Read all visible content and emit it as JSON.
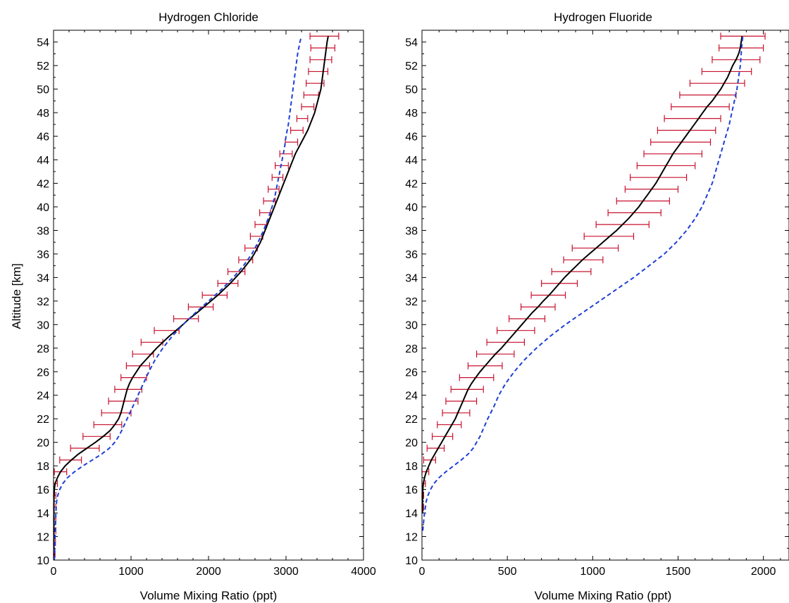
{
  "chart_data": [
    {
      "type": "line",
      "title": "Hydrogen Chloride",
      "xlabel": "Volume Mixing Ratio (ppt)",
      "ylabel": "Altitude [km]",
      "xlim": [
        0,
        4000
      ],
      "ylim": [
        10,
        55
      ],
      "xticks": [
        0,
        1000,
        2000,
        3000,
        4000
      ],
      "yticks": [
        10,
        12,
        14,
        16,
        18,
        20,
        22,
        24,
        26,
        28,
        30,
        32,
        34,
        36,
        38,
        40,
        42,
        44,
        46,
        48,
        50,
        52,
        54
      ],
      "grid": false,
      "series": [
        {
          "style": "solid",
          "color": "#000000",
          "altitude": [
            10,
            11,
            12,
            13,
            14,
            15,
            16,
            16.5,
            17,
            17.5,
            18,
            18.5,
            19,
            19.5,
            20,
            20.5,
            21,
            21.5,
            22,
            22.5,
            23,
            23.5,
            24,
            24.5,
            25,
            25.5,
            26,
            26.5,
            27,
            27.5,
            28,
            28.5,
            29,
            29.5,
            30,
            30.5,
            31,
            31.5,
            32,
            32.5,
            33,
            33.5,
            34,
            34.5,
            35,
            35.5,
            36,
            36.5,
            37,
            37.5,
            38,
            38.5,
            39,
            39.5,
            40,
            40.5,
            41,
            41.5,
            42,
            42.5,
            43,
            43.5,
            44,
            44.5,
            45,
            45.5,
            46,
            46.5,
            47,
            47.5,
            48,
            48.5,
            49,
            49.5,
            50,
            50.5,
            51,
            51.5,
            52,
            52.5,
            53,
            53.5,
            54,
            54.5
          ],
          "vmr": [
            5,
            5,
            5,
            5,
            5,
            5,
            10,
            20,
            50,
            90,
            150,
            230,
            320,
            430,
            540,
            640,
            730,
            790,
            840,
            870,
            890,
            910,
            930,
            950,
            980,
            1020,
            1070,
            1120,
            1190,
            1260,
            1330,
            1410,
            1490,
            1580,
            1670,
            1750,
            1850,
            1940,
            2030,
            2120,
            2200,
            2280,
            2350,
            2420,
            2480,
            2540,
            2590,
            2630,
            2670,
            2700,
            2730,
            2760,
            2790,
            2820,
            2850,
            2880,
            2910,
            2940,
            2970,
            3000,
            3030,
            3060,
            3090,
            3120,
            3160,
            3200,
            3240,
            3280,
            3310,
            3340,
            3370,
            3390,
            3410,
            3430,
            3450,
            3460,
            3470,
            3480,
            3490,
            3500,
            3510,
            3520,
            3530,
            3545
          ]
        },
        {
          "style": "dashed",
          "color": "#1f3fd6",
          "altitude": [
            10,
            11,
            12,
            13,
            14,
            15,
            15.5,
            16,
            16.5,
            17,
            17.5,
            18,
            18.5,
            19,
            19.5,
            20,
            20.5,
            21,
            22,
            23,
            24,
            25,
            26,
            27,
            28,
            29,
            30,
            31,
            32,
            33,
            34,
            35,
            36,
            37,
            38,
            39,
            40,
            41,
            42,
            43,
            44,
            45,
            46,
            47,
            48,
            49,
            50,
            51,
            52,
            53,
            54,
            54.5
          ],
          "vmr": [
            10,
            15,
            20,
            25,
            30,
            40,
            55,
            80,
            120,
            180,
            270,
            380,
            500,
            620,
            720,
            790,
            840,
            880,
            950,
            1020,
            1090,
            1160,
            1230,
            1310,
            1410,
            1530,
            1670,
            1830,
            2000,
            2170,
            2320,
            2450,
            2560,
            2640,
            2710,
            2770,
            2820,
            2860,
            2890,
            2920,
            2950,
            2980,
            3000,
            3030,
            3050,
            3070,
            3090,
            3110,
            3130,
            3150,
            3180,
            3200
          ]
        }
      ],
      "error_bars": {
        "altitude": [
          10.5,
          11.5,
          12.5,
          13.5,
          14.5,
          15.5,
          16.5,
          17.5,
          18.5,
          19.5,
          20.5,
          21.5,
          22.5,
          23.5,
          24.5,
          25.5,
          26.5,
          27.5,
          28.5,
          29.5,
          30.5,
          31.5,
          32.5,
          33.5,
          34.5,
          35.5,
          36.5,
          37.5,
          38.5,
          39.5,
          40.5,
          41.5,
          42.5,
          43.5,
          44.5,
          45.5,
          46.5,
          47.5,
          48.5,
          49.5,
          50.5,
          51.5,
          52.5,
          53.5,
          54.5
        ],
        "low": [
          0,
          0,
          0,
          0,
          0,
          0,
          0,
          10,
          80,
          220,
          380,
          520,
          620,
          710,
          790,
          870,
          940,
          1020,
          1130,
          1300,
          1550,
          1740,
          1920,
          2120,
          2250,
          2390,
          2470,
          2540,
          2600,
          2660,
          2710,
          2770,
          2820,
          2860,
          2920,
          2990,
          3060,
          3140,
          3200,
          3230,
          3260,
          3290,
          3310,
          3320,
          3310
        ],
        "high": [
          20,
          25,
          30,
          30,
          30,
          30,
          50,
          170,
          360,
          590,
          730,
          880,
          1000,
          1090,
          1140,
          1200,
          1240,
          1290,
          1410,
          1620,
          1870,
          2060,
          2240,
          2380,
          2470,
          2570,
          2630,
          2700,
          2750,
          2800,
          2860,
          2910,
          2960,
          3030,
          3080,
          3150,
          3220,
          3280,
          3360,
          3420,
          3490,
          3540,
          3590,
          3630,
          3680
        ]
      }
    },
    {
      "type": "line",
      "title": "Hydrogen Fluoride",
      "xlabel": "Volume Mixing Ratio (ppt)",
      "ylabel": "",
      "xlim": [
        0,
        2150
      ],
      "ylim": [
        10,
        55
      ],
      "xticks": [
        0,
        500,
        1000,
        1500,
        2000
      ],
      "yticks": [
        10,
        12,
        14,
        16,
        18,
        20,
        22,
        24,
        26,
        28,
        30,
        32,
        34,
        36,
        38,
        40,
        42,
        44,
        46,
        48,
        50,
        52,
        54
      ],
      "grid": false,
      "series": [
        {
          "style": "solid",
          "color": "#000000",
          "altitude": [
            14,
            15,
            16,
            16.5,
            17,
            17.5,
            18,
            18.5,
            19,
            19.5,
            20,
            20.5,
            21,
            21.5,
            22,
            22.5,
            23,
            23.5,
            24,
            24.5,
            25,
            25.5,
            26,
            26.5,
            27,
            27.5,
            28,
            28.5,
            29,
            29.5,
            30,
            30.5,
            31,
            31.5,
            32,
            32.5,
            33,
            33.5,
            34,
            34.5,
            35,
            35.5,
            36,
            36.5,
            37,
            37.5,
            38,
            38.5,
            39,
            39.5,
            40,
            40.5,
            41,
            41.5,
            42,
            42.5,
            43,
            43.5,
            44,
            44.5,
            45,
            45.5,
            46,
            46.5,
            47,
            47.5,
            48,
            48.5,
            49,
            49.5,
            50,
            50.5,
            51,
            51.5,
            52,
            52.5,
            53,
            53.5,
            54,
            54.5
          ],
          "vmr": [
            3,
            3,
            5,
            8,
            15,
            25,
            40,
            55,
            75,
            95,
            115,
            135,
            155,
            175,
            195,
            210,
            225,
            240,
            255,
            270,
            290,
            315,
            340,
            370,
            400,
            430,
            465,
            495,
            525,
            555,
            585,
            615,
            645,
            680,
            710,
            745,
            775,
            805,
            835,
            870,
            905,
            940,
            980,
            1020,
            1060,
            1100,
            1140,
            1175,
            1210,
            1240,
            1270,
            1295,
            1320,
            1345,
            1370,
            1390,
            1410,
            1430,
            1450,
            1470,
            1495,
            1520,
            1545,
            1570,
            1595,
            1620,
            1645,
            1670,
            1700,
            1725,
            1750,
            1770,
            1790,
            1805,
            1820,
            1840,
            1855,
            1865,
            1870,
            1875
          ]
        },
        {
          "style": "dashed",
          "color": "#1f3fd6",
          "altitude": [
            12.5,
            13,
            14,
            15,
            15.5,
            16,
            16.5,
            17,
            17.5,
            18,
            18.5,
            19,
            19.5,
            20,
            20.5,
            21,
            22,
            23,
            24,
            25,
            26,
            27,
            28,
            29,
            30,
            31,
            32,
            33,
            34,
            35,
            36,
            37,
            38,
            39,
            40,
            41,
            42,
            43,
            44,
            45,
            46,
            47,
            48,
            49,
            50,
            51,
            52,
            53,
            54,
            54.5
          ],
          "vmr": [
            5,
            8,
            15,
            25,
            35,
            50,
            70,
            100,
            140,
            185,
            230,
            270,
            300,
            320,
            340,
            355,
            385,
            420,
            450,
            490,
            540,
            600,
            670,
            750,
            840,
            940,
            1040,
            1140,
            1240,
            1330,
            1420,
            1490,
            1550,
            1600,
            1640,
            1670,
            1700,
            1720,
            1740,
            1760,
            1780,
            1800,
            1815,
            1830,
            1845,
            1855,
            1865,
            1870,
            1875,
            1880
          ]
        }
      ],
      "error_bars": {
        "altitude": [
          14.5,
          15.5,
          16.5,
          17.5,
          18.5,
          19.5,
          20.5,
          21.5,
          22.5,
          23.5,
          24.5,
          25.5,
          26.5,
          27.5,
          28.5,
          29.5,
          30.5,
          31.5,
          32.5,
          33.5,
          34.5,
          35.5,
          36.5,
          37.5,
          38.5,
          39.5,
          40.5,
          41.5,
          42.5,
          43.5,
          44.5,
          45.5,
          46.5,
          47.5,
          48.5,
          49.5,
          50.5,
          51.5,
          52.5,
          53.5,
          54.5
        ],
        "low": [
          0,
          0,
          0,
          0,
          10,
          30,
          60,
          90,
          120,
          140,
          170,
          220,
          270,
          320,
          380,
          440,
          510,
          580,
          640,
          700,
          760,
          830,
          880,
          950,
          1020,
          1090,
          1140,
          1190,
          1220,
          1260,
          1300,
          1340,
          1380,
          1420,
          1460,
          1510,
          1570,
          1640,
          1700,
          1740,
          1750
        ],
        "high": [
          10,
          10,
          20,
          40,
          80,
          130,
          180,
          230,
          280,
          320,
          360,
          420,
          470,
          540,
          600,
          660,
          720,
          780,
          840,
          910,
          990,
          1060,
          1150,
          1240,
          1330,
          1400,
          1450,
          1500,
          1550,
          1600,
          1640,
          1690,
          1720,
          1750,
          1800,
          1840,
          1890,
          1930,
          1980,
          2000,
          2010
        ]
      }
    }
  ]
}
